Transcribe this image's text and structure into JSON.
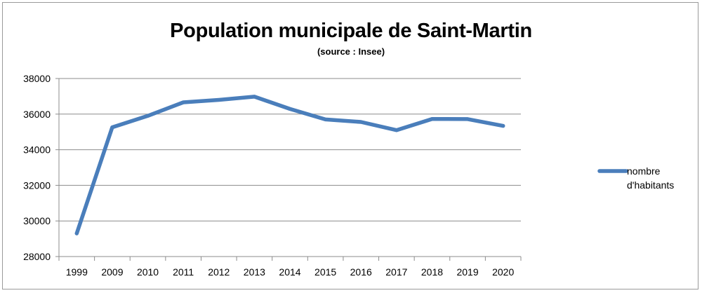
{
  "chart_data": {
    "type": "line",
    "title": "Population municipale de Saint-Martin",
    "subtitle": "(source : Insee)",
    "xlabel": "",
    "ylabel": "",
    "categories": [
      "1999",
      "2009",
      "2010",
      "2011",
      "2012",
      "2013",
      "2014",
      "2015",
      "2016",
      "2017",
      "2018",
      "2019",
      "2020"
    ],
    "series": [
      {
        "name": "nombre d'habitants",
        "legend_lines": [
          "nombre",
          "d'habitants"
        ],
        "color": "#4a7ebb",
        "values": [
          29300,
          35260,
          35900,
          36660,
          36800,
          36980,
          36290,
          35700,
          35560,
          35100,
          35730,
          35720,
          35340
        ]
      }
    ],
    "ylim": [
      28000,
      38000
    ],
    "yticks": [
      "28000",
      "30000",
      "32000",
      "34000",
      "36000",
      "38000"
    ],
    "grid": true,
    "legend_position": "right"
  }
}
